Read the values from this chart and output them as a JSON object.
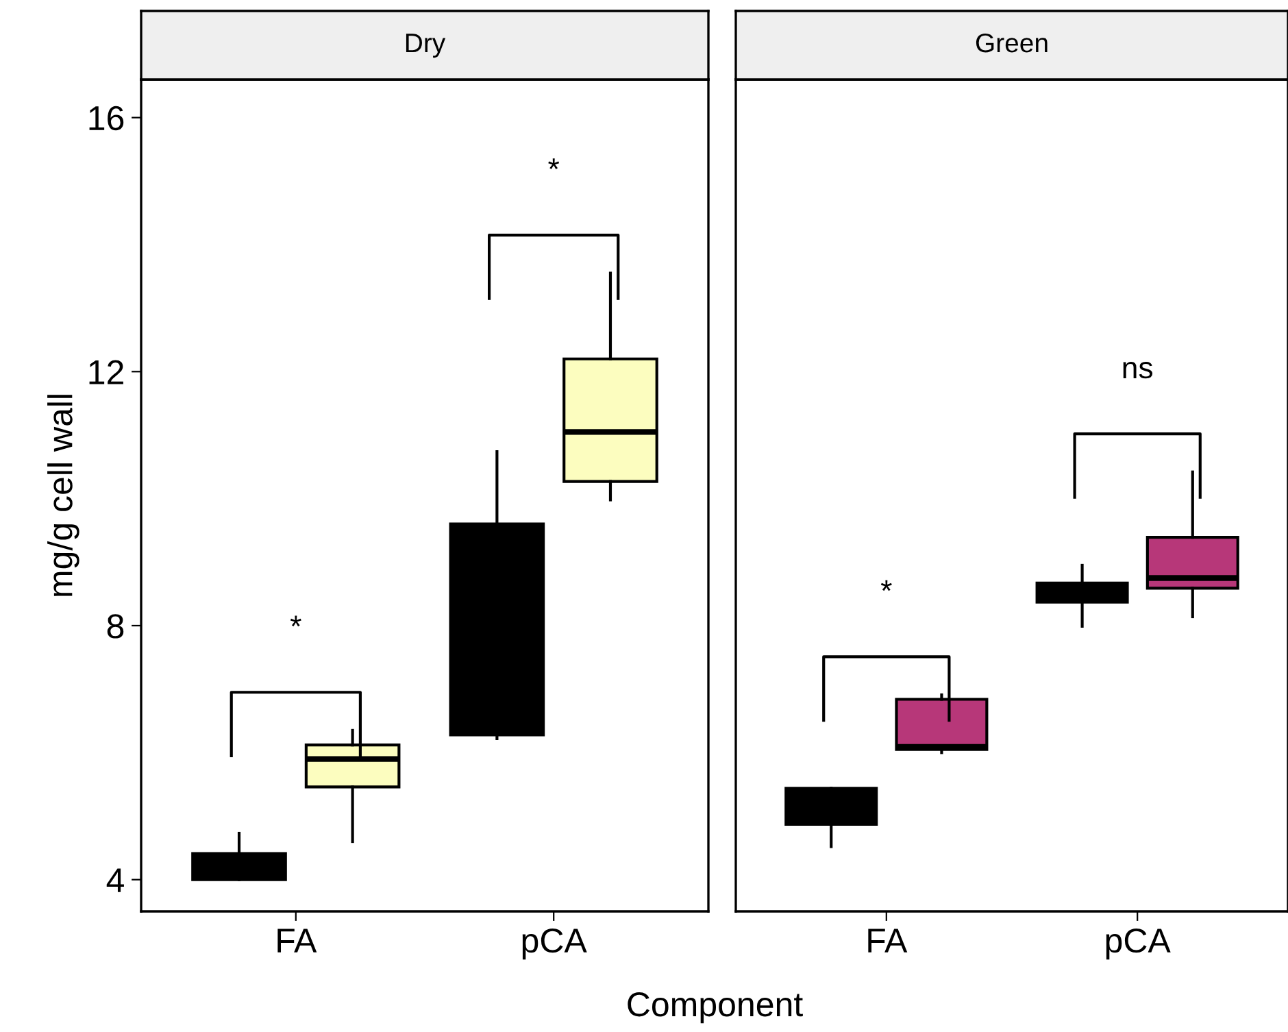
{
  "chart_data": [
    {
      "type": "box",
      "title": "Dry",
      "ylabel": "mg/g cell wall",
      "xlabel": "Component",
      "categories": [
        "FA",
        "pCA"
      ],
      "ylim": [
        3.5,
        16.6
      ],
      "yticks": [
        4,
        8,
        12,
        16
      ],
      "grid": false,
      "series": [
        {
          "color": "#000000",
          "boxes": [
            {
              "low": 4.0,
              "q1": 4.0,
              "median": 4.1,
              "q3": 4.41,
              "high": 4.73
            },
            {
              "low": 6.22,
              "q1": 6.28,
              "median": 7.5,
              "q3": 9.6,
              "high": 10.74
            }
          ]
        },
        {
          "color": "#fcfdbf",
          "boxes": [
            {
              "low": 4.6,
              "q1": 5.46,
              "median": 5.9,
              "q3": 6.12,
              "high": 6.35
            },
            {
              "low": 9.98,
              "q1": 10.27,
              "median": 11.05,
              "q3": 12.2,
              "high": 13.55
            }
          ]
        }
      ],
      "annotations": [
        "*",
        "*"
      ]
    },
    {
      "type": "box",
      "title": "Green",
      "categories": [
        "FA",
        "pCA"
      ],
      "ylim": [
        3.5,
        16.6
      ],
      "yticks": [
        4,
        8,
        12,
        16
      ],
      "tick_labels": "x",
      "grid": false,
      "series": [
        {
          "color": "#000000",
          "boxes": [
            {
              "low": 4.52,
              "q1": 4.87,
              "median": 5.0,
              "q3": 5.44,
              "high": 5.44
            },
            {
              "low": 7.99,
              "q1": 8.37,
              "median": 8.5,
              "q3": 8.67,
              "high": 8.95
            }
          ]
        },
        {
          "color": "#b73779",
          "boxes": [
            {
              "low": 6.0,
              "q1": 6.05,
              "median": 6.09,
              "q3": 6.84,
              "high": 6.91
            },
            {
              "low": 8.14,
              "q1": 8.59,
              "median": 8.75,
              "q3": 9.39,
              "high": 10.42
            }
          ]
        }
      ],
      "annotations": [
        "*",
        "ns"
      ]
    }
  ]
}
